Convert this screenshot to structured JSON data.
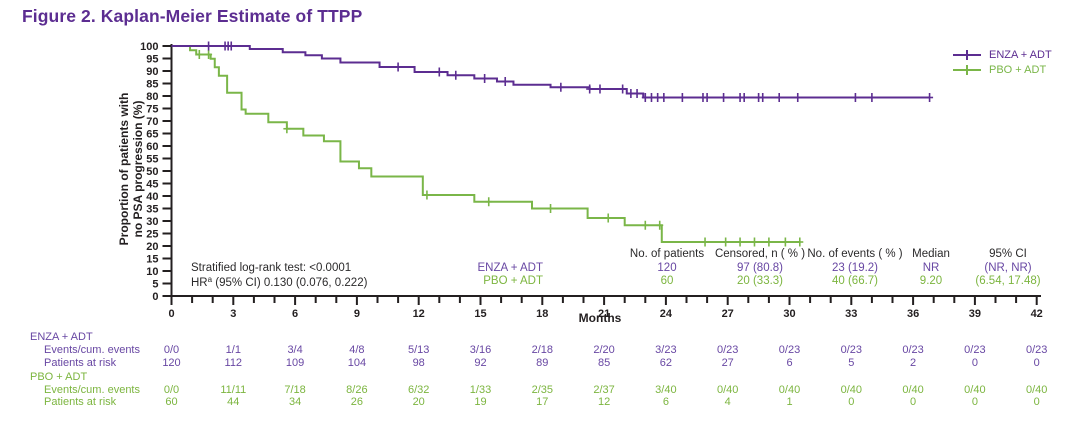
{
  "figure": {
    "title": "Figure 2. Kaplan-Meier Estimate of TTPP"
  },
  "axes": {
    "x_label": "Months",
    "y_label_line1": "Proportion of patients with",
    "y_label_line2": "no PSA progression (%)",
    "x_ticks": [
      0,
      3,
      6,
      9,
      12,
      15,
      18,
      21,
      24,
      27,
      30,
      33,
      36,
      39,
      42
    ],
    "y_ticks": [
      0,
      5,
      10,
      15,
      20,
      25,
      30,
      35,
      40,
      45,
      50,
      55,
      60,
      65,
      70,
      75,
      80,
      85,
      90,
      95,
      100
    ]
  },
  "legend": [
    {
      "label": "ENZA + ADT",
      "color": "#5c2d91"
    },
    {
      "label": "PBO + ADT",
      "color": "#7ab648"
    }
  ],
  "annotations": {
    "logrank": "Stratified log-rank test: <0.0001",
    "hr_prefix": "HR",
    "hr_sup": "a",
    "hr_rest": " (95% CI) 0.130 (0.076, 0.222)"
  },
  "summary_table": {
    "headers": [
      "No. of patients",
      "Censored, n ( % )",
      "No. of events ( % )",
      "Median",
      "95% CI"
    ],
    "rows": [
      {
        "group": "ENZA + ADT",
        "values": [
          "120",
          "97 (80.8)",
          "23 (19.2)",
          "NR",
          "(NR, NR)"
        ]
      },
      {
        "group": "PBO + ADT",
        "values": [
          "60",
          "20 (33.3)",
          "40 (66.7)",
          "9.20",
          "(6.54, 17.48)"
        ]
      }
    ]
  },
  "chart_data": {
    "type": "line",
    "title": "Kaplan-Meier Estimate of TTPP",
    "xlabel": "Months",
    "ylabel": "Proportion of patients with no PSA progression (%)",
    "xlim": [
      0,
      42
    ],
    "ylim": [
      0,
      100
    ],
    "grid": false,
    "legend_position": "top-right",
    "series": [
      {
        "name": "ENZA + ADT",
        "color": "#5c2d91",
        "end_month": 36.8,
        "steps": [
          [
            0,
            100
          ],
          [
            3.8,
            98.8
          ],
          [
            5.4,
            97.5
          ],
          [
            6.5,
            96.3
          ],
          [
            7.3,
            95.0
          ],
          [
            8.2,
            93.4
          ],
          [
            10.1,
            91.6
          ],
          [
            11.8,
            89.6
          ],
          [
            13.4,
            88.3
          ],
          [
            14.7,
            87.0
          ],
          [
            15.8,
            85.8
          ],
          [
            16.6,
            84.5
          ],
          [
            18.4,
            83.5
          ],
          [
            20.3,
            82.8
          ],
          [
            22.1,
            81.0
          ],
          [
            22.9,
            79.4
          ]
        ],
        "censor_months": [
          1.8,
          2.6,
          2.75,
          2.9,
          11.0,
          13.0,
          13.8,
          15.2,
          16.2,
          18.9,
          20.3,
          20.8,
          21.9,
          22.3,
          22.6,
          23.0,
          23.3,
          23.6,
          23.9,
          24.8,
          25.8,
          26.0,
          26.8,
          27.6,
          27.8,
          28.5,
          28.7,
          29.5,
          30.4,
          33.2,
          34.0,
          36.8
        ]
      },
      {
        "name": "PBO + ADT",
        "color": "#7ab648",
        "end_month": 30.5,
        "steps": [
          [
            0,
            100
          ],
          [
            0.9,
            98.3
          ],
          [
            1.2,
            96.6
          ],
          [
            1.9,
            94.9
          ],
          [
            2.1,
            91.5
          ],
          [
            2.3,
            88.1
          ],
          [
            2.7,
            81.3
          ],
          [
            3.4,
            74.6
          ],
          [
            3.6,
            72.9
          ],
          [
            4.7,
            69.5
          ],
          [
            5.6,
            66.9
          ],
          [
            6.4,
            64.2
          ],
          [
            7.4,
            61.9
          ],
          [
            8.2,
            53.8
          ],
          [
            9.1,
            51.1
          ],
          [
            9.7,
            47.8
          ],
          [
            12.2,
            40.4
          ],
          [
            14.7,
            37.7
          ],
          [
            17.5,
            35.0
          ],
          [
            20.2,
            31.2
          ],
          [
            22.0,
            28.3
          ],
          [
            23.8,
            21.6
          ]
        ],
        "censor_months": [
          1.35,
          1.8,
          5.6,
          12.4,
          15.4,
          18.4,
          21.2,
          23.0,
          23.7,
          25.9,
          26.9,
          27.6,
          28.3,
          29.0,
          29.8,
          30.5
        ]
      }
    ]
  },
  "risk_table": {
    "months": [
      0,
      3,
      6,
      9,
      12,
      15,
      18,
      21,
      24,
      27,
      30,
      33,
      36,
      39,
      42
    ],
    "groups": [
      {
        "label": "ENZA + ADT",
        "rows": [
          {
            "label": "Events/cum. events",
            "values": [
              "0/0",
              "1/1",
              "3/4",
              "4/8",
              "5/13",
              "3/16",
              "2/18",
              "2/20",
              "3/23",
              "0/23",
              "0/23",
              "0/23",
              "0/23",
              "0/23",
              "0/23"
            ]
          },
          {
            "label": "Patients at risk",
            "values": [
              "120",
              "112",
              "109",
              "104",
              "98",
              "92",
              "89",
              "85",
              "62",
              "27",
              "6",
              "5",
              "2",
              "0",
              "0"
            ]
          }
        ]
      },
      {
        "label": "PBO + ADT",
        "rows": [
          {
            "label": "Events/cum. events",
            "values": [
              "0/0",
              "11/11",
              "7/18",
              "8/26",
              "6/32",
              "1/33",
              "2/35",
              "2/37",
              "3/40",
              "0/40",
              "0/40",
              "0/40",
              "0/40",
              "0/40",
              "0/40"
            ]
          },
          {
            "label": "Patients at risk",
            "values": [
              "60",
              "44",
              "34",
              "26",
              "20",
              "19",
              "17",
              "12",
              "6",
              "4",
              "1",
              "0",
              "0",
              "0",
              "0"
            ]
          }
        ]
      }
    ]
  },
  "colors": {
    "purple_line": "#5c2d91",
    "green_line": "#7ab648",
    "purple_text": "#6847a3",
    "green_text": "#7cb53f",
    "axis": "#231f20"
  }
}
